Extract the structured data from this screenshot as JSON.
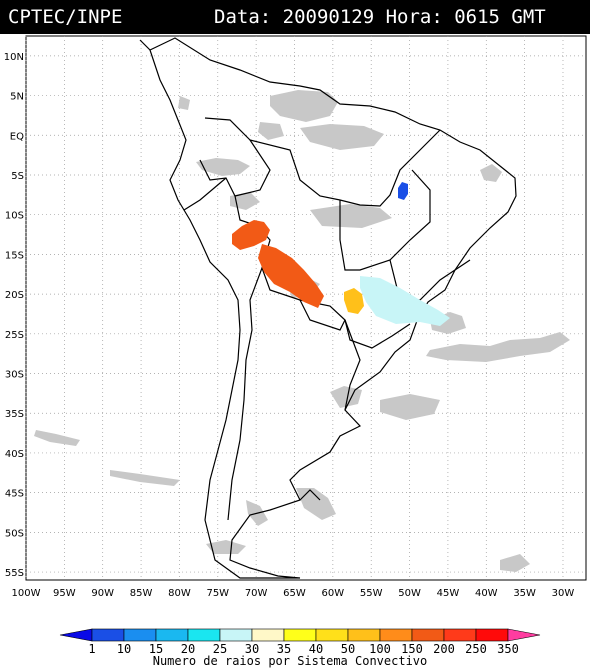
{
  "header": {
    "source": "CPTEC/INPE",
    "datetime": "Data: 20090129 Hora: 0615 GMT"
  },
  "map": {
    "lat_labels": [
      "10N",
      "5N",
      "EQ",
      "5S",
      "10S",
      "15S",
      "20S",
      "25S",
      "30S",
      "35S",
      "40S",
      "45S",
      "50S",
      "55S"
    ],
    "lon_labels": [
      "100W",
      "95W",
      "90W",
      "85W",
      "80W",
      "75W",
      "70W",
      "65W",
      "60W",
      "55W",
      "50W",
      "45W",
      "40W",
      "35W",
      "30W"
    ],
    "lat_values": [
      10,
      5,
      0,
      -5,
      -10,
      -15,
      -20,
      -25,
      -30,
      -35,
      -40,
      -45,
      -50,
      -55
    ],
    "lon_values": [
      -100,
      -95,
      -90,
      -85,
      -80,
      -75,
      -70,
      -65,
      -60,
      -55,
      -50,
      -45,
      -40,
      -35,
      -30
    ],
    "extent": {
      "lon_min": -100,
      "lon_max": -27,
      "lat_min": -56,
      "lat_max": 12.5
    },
    "grid": "dotted",
    "colors": {
      "coast": "#000000",
      "cloud": "#c8c8c8",
      "grid": "#9a9a9a"
    },
    "convective_systems": [
      {
        "name": "central-brazil-blue",
        "class": "1",
        "color": "#1a4fe6"
      },
      {
        "name": "bolivia-west-orange",
        "class": "250",
        "color": "#f25a16"
      },
      {
        "name": "bolivia-east-orange",
        "class": "250",
        "color": "#f25a16"
      },
      {
        "name": "paraguay-yellow",
        "class": "100",
        "color": "#ffc01a"
      },
      {
        "name": "southeast-lightcyan",
        "class": "30",
        "color": "#c8f5f7"
      }
    ]
  },
  "colorbar": {
    "ticks": [
      "1",
      "10",
      "15",
      "20",
      "25",
      "30",
      "35",
      "40",
      "50",
      "100",
      "150",
      "200",
      "250",
      "350"
    ],
    "colors": [
      "#0a0ae6",
      "#1a4fe6",
      "#1a8ef0",
      "#1ab8f0",
      "#1ae6f0",
      "#c8f5f7",
      "#fff8c8",
      "#ffff1a",
      "#ffe01a",
      "#ffc01a",
      "#ff8c1a",
      "#f25a16",
      "#ff3a1a",
      "#ff0a0a",
      "#ff3ca0"
    ],
    "label": "Numero de raios por Sistema Convectivo"
  }
}
